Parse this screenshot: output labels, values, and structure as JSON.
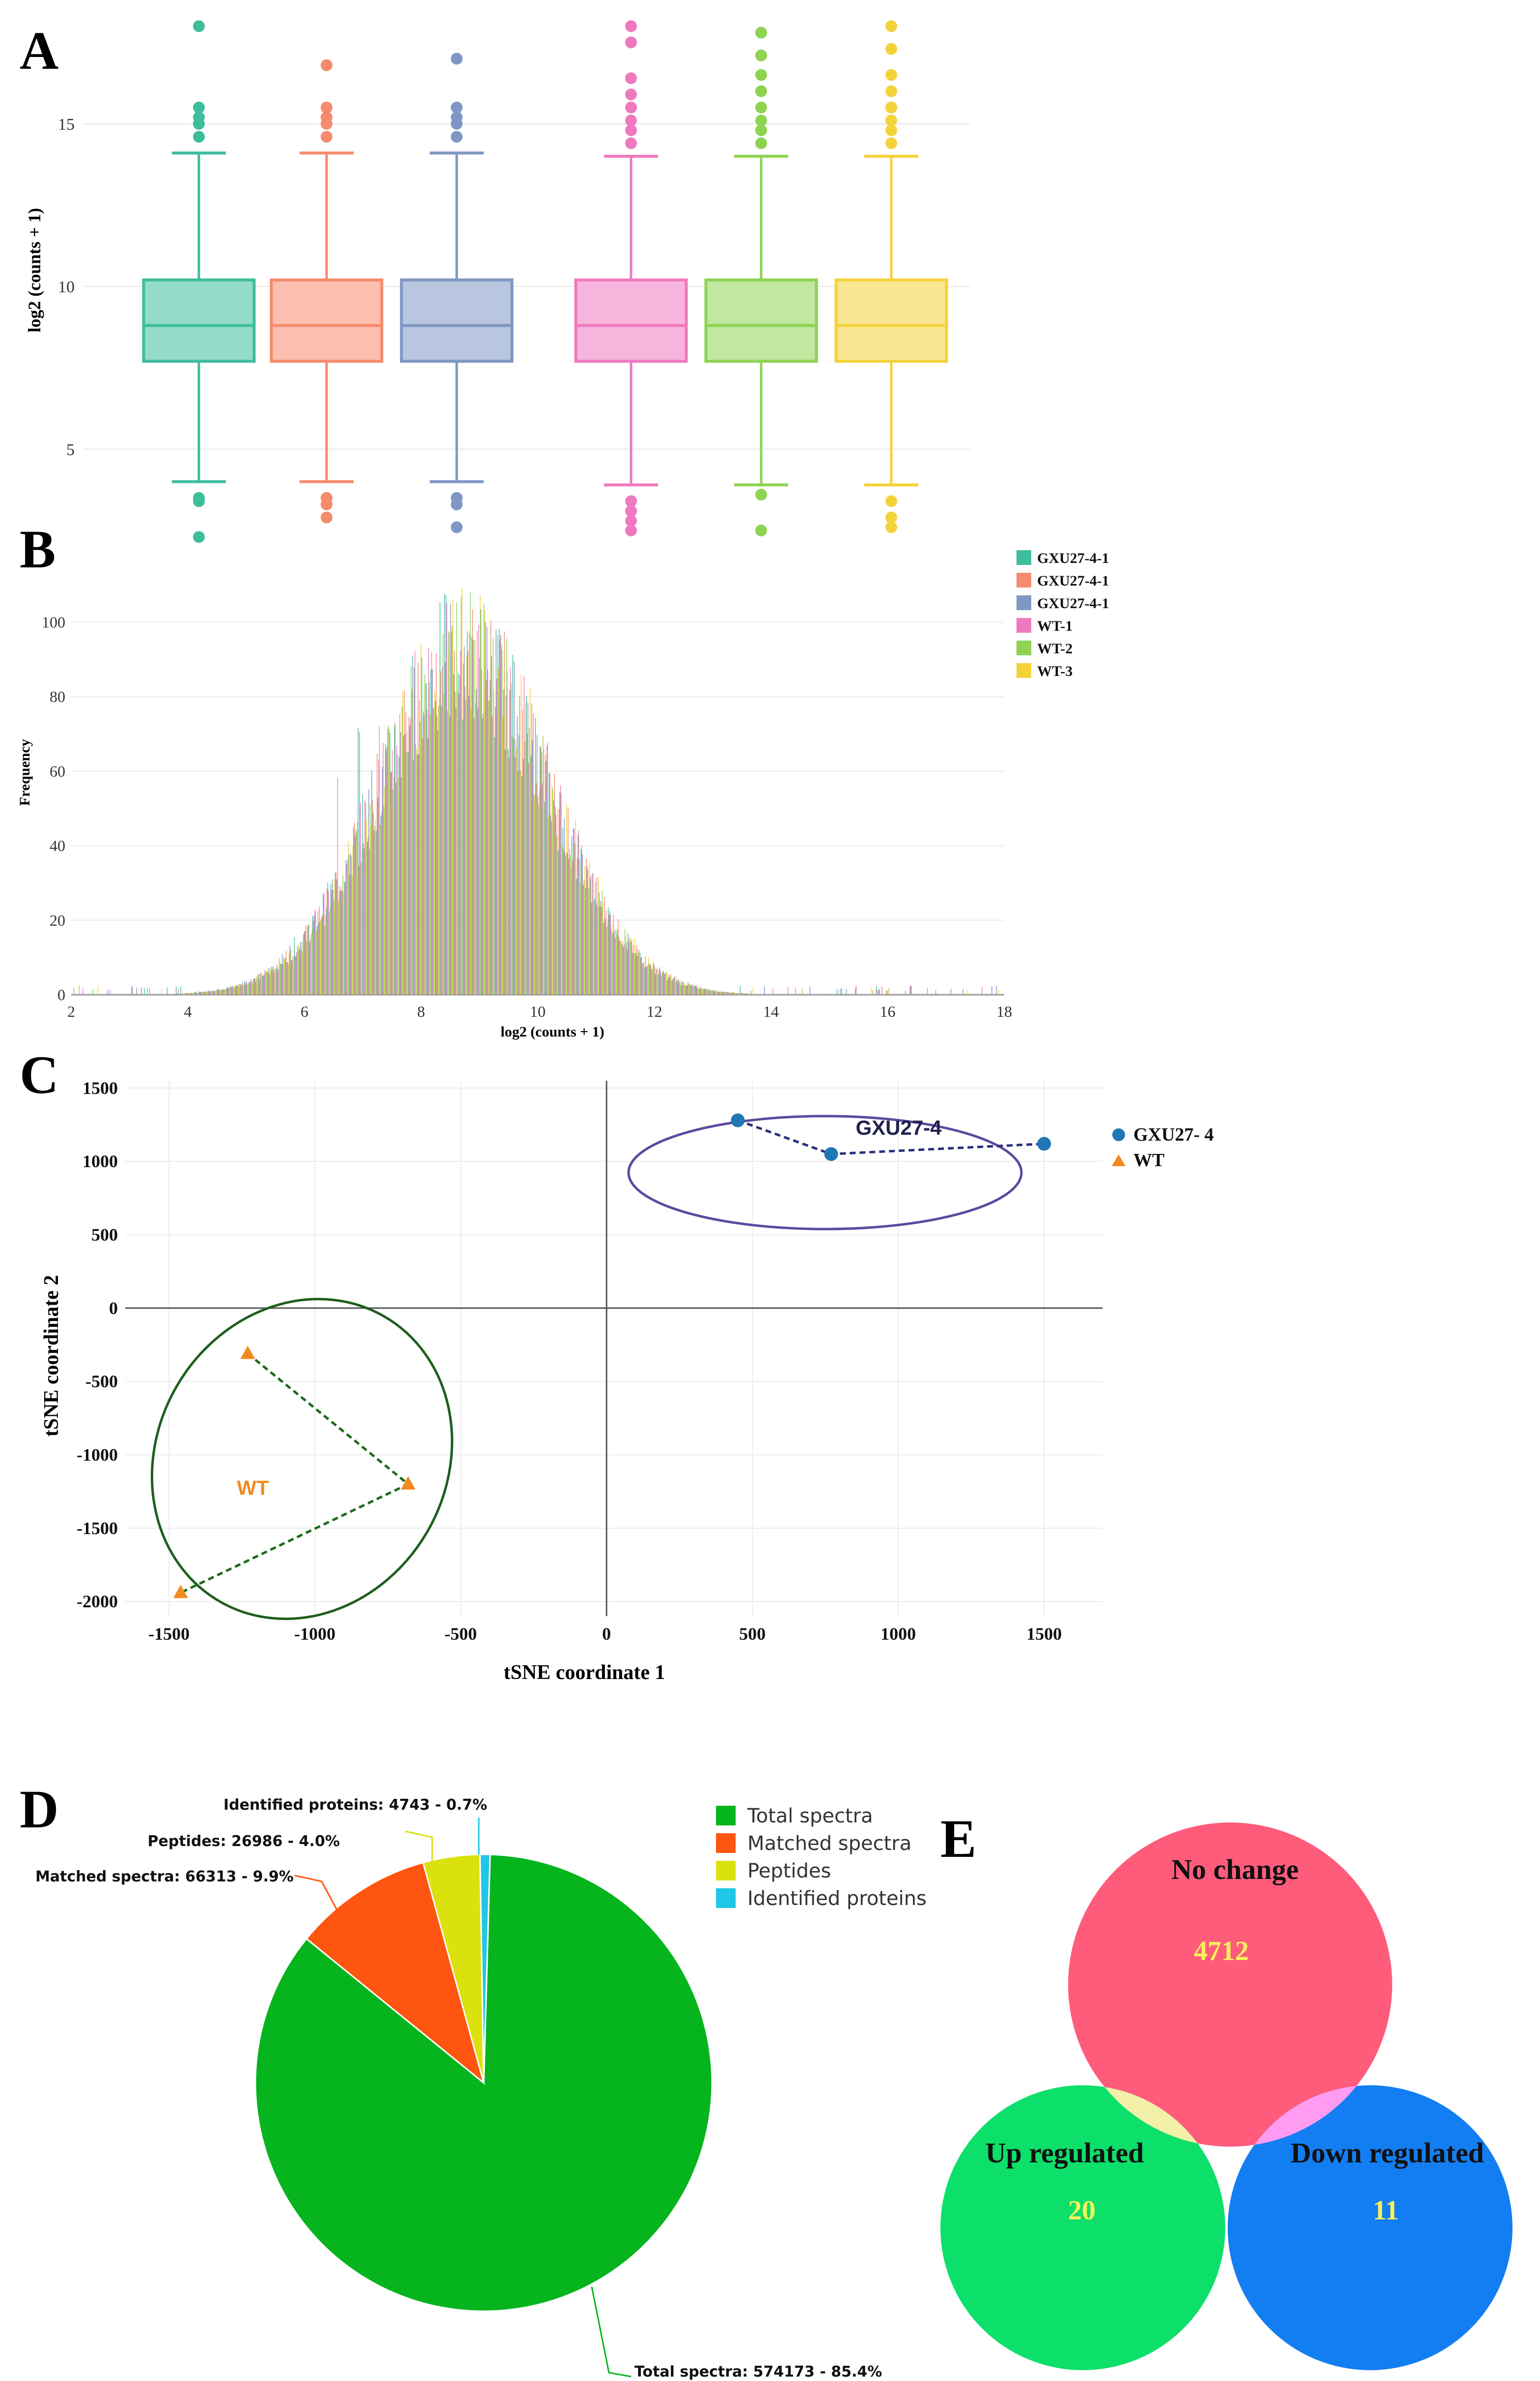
{
  "panels": {
    "a": {
      "letter": "A"
    },
    "b": {
      "letter": "B"
    },
    "c": {
      "letter": "C"
    },
    "d": {
      "letter": "D"
    },
    "e": {
      "letter": "E"
    }
  },
  "colors": {
    "teal": "#3dbd9b",
    "salmon": "#f68a6c",
    "slate": "#7f97c4",
    "pink": "#ef79bf",
    "lime": "#8ed352",
    "gold": "#f4d23a"
  },
  "chart_data": [
    {
      "id": "A",
      "type": "box",
      "ylabel": "log2 (counts + 1)",
      "ylim": [
        2.8,
        18.2
      ],
      "yticks": [
        5,
        10,
        15
      ],
      "grid": true,
      "series": [
        {
          "name": "GXU27-4-1",
          "color": "#3dbd9b",
          "min": 4.0,
          "q1": 7.7,
          "median": 8.8,
          "q3": 10.2,
          "max": 14.1,
          "outliers_high": [
            14.6,
            15.0,
            15.2,
            15.5,
            18.0
          ],
          "outliers_low": [
            3.5,
            3.4,
            2.3
          ]
        },
        {
          "name": "GXU27-4-1",
          "color": "#f68a6c",
          "min": 4.0,
          "q1": 7.7,
          "median": 8.8,
          "q3": 10.2,
          "max": 14.1,
          "outliers_high": [
            14.6,
            15.0,
            15.2,
            15.5,
            16.8
          ],
          "outliers_low": [
            3.5,
            3.3,
            2.9
          ]
        },
        {
          "name": "GXU27-4-1",
          "color": "#7f97c4",
          "min": 4.0,
          "q1": 7.7,
          "median": 8.8,
          "q3": 10.2,
          "max": 14.1,
          "outliers_high": [
            14.6,
            15.0,
            15.2,
            15.5,
            17.0
          ],
          "outliers_low": [
            3.5,
            3.3,
            2.6
          ]
        },
        {
          "name": "WT-1",
          "color": "#ef79bf",
          "min": 3.9,
          "q1": 7.7,
          "median": 8.8,
          "q3": 10.2,
          "max": 14.0,
          "outliers_high": [
            14.4,
            14.8,
            15.1,
            15.5,
            15.9,
            16.4,
            17.5,
            18.0
          ],
          "outliers_low": [
            3.4,
            3.1,
            2.8,
            2.5
          ]
        },
        {
          "name": "WT-2",
          "color": "#8ed352",
          "min": 3.9,
          "q1": 7.7,
          "median": 8.8,
          "q3": 10.2,
          "max": 14.0,
          "outliers_high": [
            14.4,
            14.8,
            15.1,
            15.5,
            16.0,
            16.5,
            17.1,
            17.8
          ],
          "outliers_low": [
            3.6,
            2.5
          ]
        },
        {
          "name": "WT-3",
          "color": "#f4d23a",
          "min": 3.9,
          "q1": 7.7,
          "median": 8.8,
          "q3": 10.2,
          "max": 14.0,
          "outliers_high": [
            14.4,
            14.8,
            15.1,
            15.5,
            16.0,
            16.5,
            17.3,
            18.0
          ],
          "outliers_low": [
            3.4,
            2.9,
            2.6
          ]
        }
      ]
    },
    {
      "id": "B",
      "type": "bar",
      "xlabel": "log2 (counts + 1)",
      "ylabel": "Frequency",
      "xlim": [
        2,
        18
      ],
      "ylim": [
        0,
        118
      ],
      "xticks": [
        2,
        4,
        6,
        8,
        10,
        12,
        14,
        16,
        18
      ],
      "yticks": [
        0,
        20,
        40,
        60,
        80,
        100
      ],
      "legend": [
        "GXU27-4-1",
        "GXU27-4-1",
        "GXU27-4-1",
        "WT-1",
        "WT-2",
        "WT-3"
      ],
      "legend_position": "top-right",
      "distribution": {
        "peak_center": 8.7,
        "peak_height": 92,
        "spread": 1.45
      }
    },
    {
      "id": "C",
      "type": "scatter",
      "xlabel": "tSNE coordinate 1",
      "ylabel": "tSNE coordinate 2",
      "xlim": [
        -1650,
        1700
      ],
      "ylim": [
        -2100,
        1550
      ],
      "xticks": [
        -1500,
        -1000,
        -500,
        0,
        500,
        1000,
        1500
      ],
      "yticks": [
        1500,
        1000,
        500,
        0,
        -500,
        -1000,
        -1500,
        -2000
      ],
      "series": [
        {
          "name": "GXU27-4",
          "legend_label": "GXU27- 4",
          "group_label": "GXU27-4",
          "marker": "circle",
          "color": "#1f77b4",
          "points": [
            [
              450,
              1280
            ],
            [
              770,
              1050
            ],
            [
              1500,
              1120
            ]
          ]
        },
        {
          "name": "WT",
          "legend_label": "WT",
          "group_label": "WT",
          "marker": "triangle",
          "color": "#f28a22",
          "points": [
            [
              -1230,
              -310
            ],
            [
              -680,
              -1200
            ],
            [
              -1460,
              -1940
            ]
          ]
        }
      ]
    },
    {
      "id": "D",
      "type": "pie",
      "slices": [
        {
          "label": "Total spectra",
          "value": 574173,
          "percent": 85.4,
          "color": "#06b41e",
          "callout": "Total spectra: 574173 - 85.4%"
        },
        {
          "label": "Matched spectra",
          "value": 66313,
          "percent": 9.9,
          "color": "#fe5510",
          "callout": "Matched spectra: 66313 - 9.9%"
        },
        {
          "label": "Peptides",
          "value": 26986,
          "percent": 4.0,
          "color": "#dbe10c",
          "callout": "Peptides: 26986 - 4.0%"
        },
        {
          "label": "Identified proteins",
          "value": 4743,
          "percent": 0.7,
          "color": "#20c6e6",
          "callout": "Identified proteins: 4743 - 0.7%"
        }
      ],
      "legend_position": "top-right"
    },
    {
      "id": "E",
      "type": "venn",
      "sets": [
        {
          "label": "No change",
          "count": "4712",
          "color": "#ff5c7c"
        },
        {
          "label": "Up regulated",
          "count": "20",
          "color": "#0ce06a"
        },
        {
          "label": "Down regulated",
          "count": "11",
          "color": "#137ef2"
        }
      ]
    }
  ]
}
